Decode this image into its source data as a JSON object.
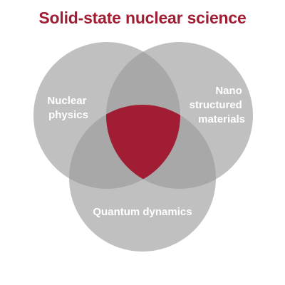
{
  "title": "Solid-state nuclear science",
  "colors": {
    "title": "#a11d33",
    "circle": "#9a9a9a",
    "center": "#a11d33",
    "label": "#ffffff"
  },
  "sets": {
    "left": {
      "lines": [
        "Nuclear",
        "physics"
      ]
    },
    "right": {
      "lines": [
        "Nano",
        "structured",
        "materials"
      ]
    },
    "bottom": {
      "lines": [
        "Quantum dynamics"
      ]
    }
  }
}
